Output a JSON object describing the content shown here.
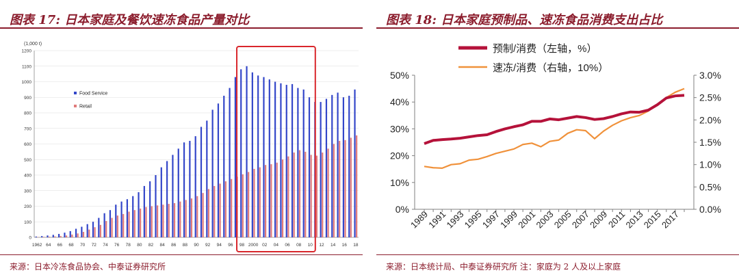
{
  "left_panel": {
    "title": "图表 17:   日本家庭及餐饮速冻食品产量对比",
    "source": "来源：日本冷冻食品协会、中泰证券研究所"
  },
  "right_panel": {
    "title": "图表 18: 日本家庭预制品、速冻食品消费支出占比",
    "source": "来源：日本统计局、中泰证券研究所 注：家庭为 2 人及以上家庭"
  },
  "colors": {
    "title_red": "#8b1c2c",
    "food_service": "#3346c9",
    "retail": "#e07a7a",
    "highlight_box": "#d9262b",
    "prepared_line": "#b5123a",
    "frozen_line": "#f0913a"
  },
  "chart_data": [
    {
      "type": "bar",
      "unit_label": "(1,000 t)",
      "ylim": [
        0,
        1200
      ],
      "yticks": [
        "0",
        "100",
        "200",
        "300",
        "400",
        "500",
        "600",
        "700",
        "800",
        "900",
        "1000",
        "1100",
        "1200"
      ],
      "grid": true,
      "legend_position": "left-middle",
      "x": [
        1962,
        1963,
        1964,
        1965,
        1966,
        1967,
        1968,
        1969,
        1970,
        1971,
        1972,
        1973,
        1974,
        1975,
        1976,
        1977,
        1978,
        1979,
        1980,
        1981,
        1982,
        1983,
        1984,
        1985,
        1986,
        1987,
        1988,
        1989,
        1990,
        1991,
        1992,
        1993,
        1994,
        1995,
        1996,
        1997,
        1998,
        1999,
        2000,
        2001,
        2002,
        2003,
        2004,
        2005,
        2006,
        2007,
        2008,
        2009,
        2010,
        2011,
        2012,
        2013,
        2014,
        2015,
        2016,
        2017,
        2018
      ],
      "xtick_labels": [
        "1962",
        "64",
        "66",
        "68",
        "70",
        "72",
        "74",
        "76",
        "78",
        "80",
        "82",
        "84",
        "86",
        "88",
        "90",
        "92",
        "94",
        "96",
        "98",
        "2000",
        "02",
        "04",
        "06",
        "08",
        "10",
        "12",
        "14",
        "16",
        "18"
      ],
      "series": [
        {
          "name": "Food Service",
          "values": [
            5,
            8,
            12,
            16,
            22,
            30,
            40,
            55,
            68,
            85,
            100,
            125,
            155,
            175,
            210,
            230,
            245,
            265,
            290,
            330,
            360,
            400,
            450,
            490,
            530,
            570,
            610,
            620,
            650,
            710,
            750,
            820,
            860,
            910,
            960,
            1030,
            1080,
            1100,
            1060,
            1040,
            1030,
            1015,
            1000,
            990,
            980,
            985,
            960,
            950,
            900,
            870,
            870,
            890,
            915,
            930,
            900,
            910,
            950
          ]
        },
        {
          "name": "Retail",
          "values": [
            2,
            3,
            4,
            6,
            8,
            12,
            18,
            25,
            35,
            50,
            65,
            80,
            105,
            125,
            140,
            150,
            165,
            175,
            185,
            195,
            200,
            205,
            210,
            215,
            220,
            230,
            240,
            250,
            265,
            285,
            310,
            330,
            345,
            360,
            375,
            390,
            405,
            420,
            440,
            450,
            465,
            470,
            480,
            500,
            520,
            545,
            560,
            550,
            530,
            525,
            545,
            570,
            600,
            620,
            625,
            640,
            655
          ]
        }
      ],
      "annotations": [
        "highlight box around 1998-2010"
      ]
    },
    {
      "type": "line",
      "legend_position": "top",
      "x": [
        1989,
        1990,
        1991,
        1992,
        1993,
        1994,
        1995,
        1996,
        1997,
        1998,
        1999,
        2000,
        2001,
        2002,
        2003,
        2004,
        2005,
        2006,
        2007,
        2008,
        2009,
        2010,
        2011,
        2012,
        2013,
        2014,
        2015,
        2016,
        2017,
        2018
      ],
      "xtick_labels": [
        "1989",
        "1991",
        "1993",
        "1995",
        "1997",
        "1999",
        "2001",
        "2003",
        "2005",
        "2007",
        "2009",
        "2011",
        "2013",
        "2015",
        "2017"
      ],
      "left_axis": {
        "ylim": [
          0,
          50
        ],
        "ticks": [
          "0%",
          "10%",
          "20%",
          "30%",
          "40%",
          "50%"
        ]
      },
      "right_axis": {
        "ylim": [
          0,
          3.0
        ],
        "ticks": [
          "0.0%",
          "0.5%",
          "1.0%",
          "1.5%",
          "2.0%",
          "2.5%",
          "3.0%"
        ]
      },
      "series": [
        {
          "name": "预制/消费（左轴，%）",
          "axis": "left",
          "values": [
            24.5,
            25.7,
            26.0,
            26.2,
            26.5,
            27.0,
            27.5,
            27.8,
            29.0,
            30.0,
            30.8,
            31.5,
            32.8,
            32.8,
            33.7,
            33.4,
            34.0,
            34.6,
            34.2,
            33.5,
            33.8,
            34.6,
            35.6,
            36.3,
            36.2,
            37.0,
            39.0,
            41.5,
            42.3,
            42.5
          ]
        },
        {
          "name": "速冻/消费（右轴，10%）",
          "axis": "right",
          "values": [
            0.96,
            0.93,
            0.92,
            1.0,
            1.02,
            1.1,
            1.12,
            1.18,
            1.25,
            1.3,
            1.35,
            1.45,
            1.48,
            1.4,
            1.52,
            1.55,
            1.7,
            1.78,
            1.76,
            1.58,
            1.75,
            1.88,
            1.98,
            2.05,
            2.1,
            2.2,
            2.35,
            2.5,
            2.62,
            2.7
          ]
        }
      ]
    }
  ]
}
